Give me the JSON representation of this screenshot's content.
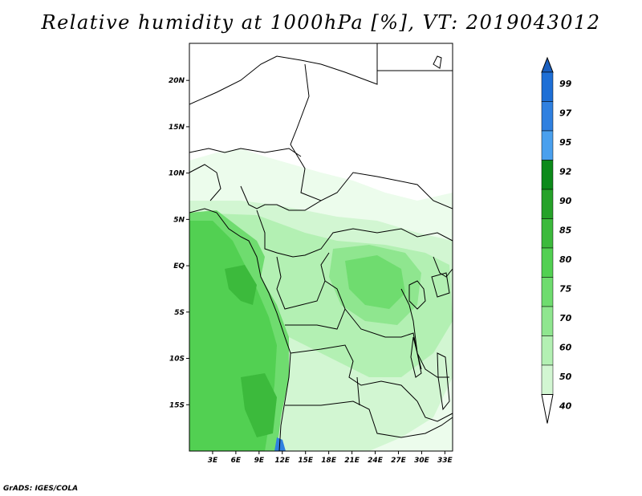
{
  "title": "Relative humidity at 1000hPa [%], VT: 2019043012",
  "credit": "GrADS: IGES/COLA",
  "map": {
    "lon_range": [
      0,
      34
    ],
    "lat_range": [
      -20,
      24
    ],
    "lat_ticks": [
      {
        "value": 20,
        "label": "20N"
      },
      {
        "value": 15,
        "label": "15N"
      },
      {
        "value": 10,
        "label": "10N"
      },
      {
        "value": 5,
        "label": "5N"
      },
      {
        "value": 0,
        "label": "EQ"
      },
      {
        "value": -5,
        "label": "5S"
      },
      {
        "value": -10,
        "label": "10S"
      },
      {
        "value": -15,
        "label": "15S"
      }
    ],
    "lon_ticks": [
      {
        "value": 3,
        "label": "3E"
      },
      {
        "value": 6,
        "label": "6E"
      },
      {
        "value": 9,
        "label": "9E"
      },
      {
        "value": 12,
        "label": "12E"
      },
      {
        "value": 15,
        "label": "15E"
      },
      {
        "value": 18,
        "label": "18E"
      },
      {
        "value": 21,
        "label": "21E"
      },
      {
        "value": 24,
        "label": "24E"
      },
      {
        "value": 27,
        "label": "27E"
      },
      {
        "value": 30,
        "label": "30E"
      },
      {
        "value": 33,
        "label": "33E"
      }
    ]
  },
  "colorbar": {
    "levels": [
      "99",
      "97",
      "95",
      "92",
      "90",
      "85",
      "80",
      "75",
      "70",
      "60",
      "50",
      "40"
    ],
    "colors": [
      "#1e6fd6",
      "#2f80e0",
      "#4aa0ee",
      "#0c8a1a",
      "#26a229",
      "#3cba3c",
      "#52d052",
      "#6fdc6f",
      "#8fe68f",
      "#b3f0b3",
      "#d2f6d2",
      "#ecfcec"
    ],
    "top_color": "#1a5fbf",
    "bottom_color": "#ffffff"
  }
}
